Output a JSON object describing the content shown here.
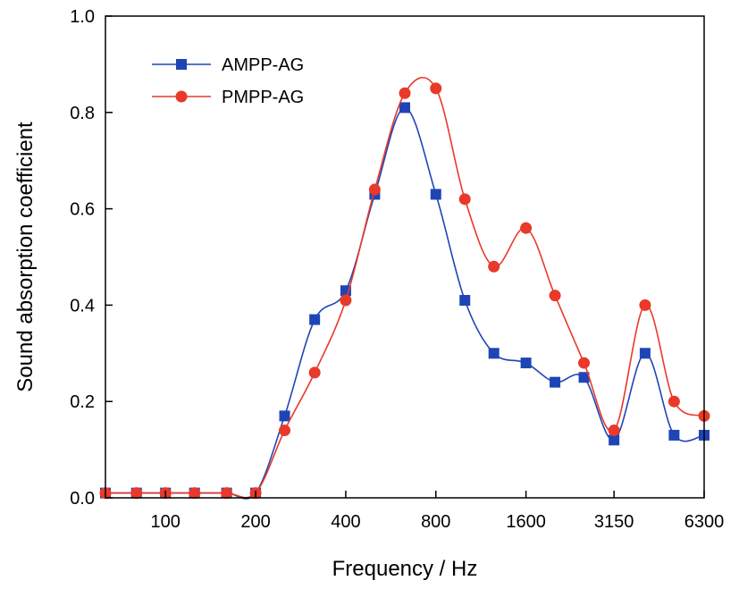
{
  "chart_data": {
    "type": "line",
    "xlabel": "Frequency / Hz",
    "ylabel": "Sound absorption coefficient",
    "x_scale": "log",
    "x": [
      63,
      80,
      100,
      125,
      160,
      200,
      250,
      315,
      400,
      500,
      630,
      800,
      1000,
      1250,
      1600,
      2000,
      2500,
      3150,
      4000,
      5000,
      6300
    ],
    "xlim": [
      63,
      6300
    ],
    "ylim": [
      0,
      1.0
    ],
    "x_ticks": [
      100,
      200,
      400,
      800,
      1600,
      3150,
      6300
    ],
    "x_tick_labels": [
      "100",
      "200",
      "400",
      "800",
      "1600",
      "3150",
      "6300"
    ],
    "y_ticks": [
      0,
      0.2,
      0.4,
      0.6,
      0.8,
      1.0
    ],
    "y_tick_labels": [
      "0.0",
      "0.2",
      "0.4",
      "0.6",
      "0.8",
      "1.0"
    ],
    "grid": false,
    "legend_position": "top-left",
    "series": [
      {
        "name": "AMPP-AG",
        "color": "#1f45b5",
        "marker": "square",
        "values": [
          0.01,
          0.01,
          0.01,
          0.01,
          0.01,
          0.01,
          0.17,
          0.37,
          0.43,
          0.63,
          0.81,
          0.63,
          0.41,
          0.3,
          0.28,
          0.24,
          0.25,
          0.12,
          0.3,
          0.13,
          0.13
        ]
      },
      {
        "name": "PMPP-AG",
        "color": "#e8392a",
        "marker": "circle",
        "values": [
          0.01,
          0.01,
          0.01,
          0.01,
          0.01,
          0.01,
          0.14,
          0.26,
          0.41,
          0.64,
          0.84,
          0.85,
          0.62,
          0.48,
          0.56,
          0.42,
          0.28,
          0.14,
          0.4,
          0.2,
          0.17
        ]
      }
    ]
  }
}
